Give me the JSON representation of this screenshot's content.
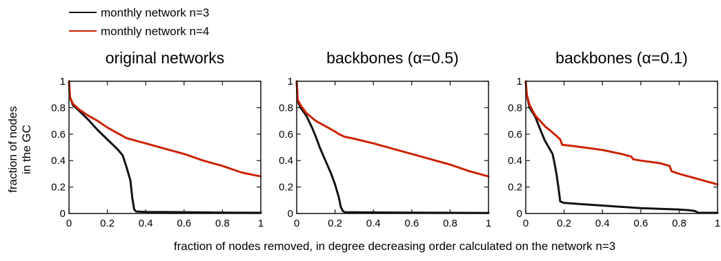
{
  "legend": [
    {
      "label": "monthly network n=3",
      "color": "#111111"
    },
    {
      "label": "monthly network n=4",
      "color": "#cc2200"
    }
  ],
  "xlabel": "fraction of nodes removed, in degree decreasing order calculated on the network n=3",
  "ylabel_lines": [
    "fraction of nodes",
    "in the GC"
  ],
  "x_ticks": [
    "0",
    "0.2",
    "0.4",
    "0.6",
    "0.8",
    "1"
  ],
  "y_ticks": [
    "0",
    "0.2",
    "0.4",
    "0.6",
    "0.8",
    "1"
  ],
  "chart_data": [
    {
      "type": "line",
      "title": "original networks",
      "xlim": [
        0,
        1
      ],
      "ylim": [
        0,
        1
      ],
      "series": [
        {
          "name": "monthly network n=3",
          "color": "#111111",
          "x": [
            0,
            0.005,
            0.02,
            0.05,
            0.1,
            0.15,
            0.2,
            0.25,
            0.28,
            0.3,
            0.31,
            0.32,
            0.33,
            0.34,
            0.35,
            0.4,
            0.6,
            0.8,
            1.0
          ],
          "y": [
            1,
            0.88,
            0.82,
            0.78,
            0.71,
            0.63,
            0.56,
            0.49,
            0.44,
            0.35,
            0.3,
            0.25,
            0.12,
            0.03,
            0.015,
            0.012,
            0.01,
            0.007,
            0.005
          ]
        },
        {
          "name": "monthly network n=4",
          "color": "#cc2200",
          "x": [
            0,
            0.005,
            0.02,
            0.05,
            0.1,
            0.15,
            0.2,
            0.25,
            0.3,
            0.35,
            0.4,
            0.5,
            0.6,
            0.7,
            0.8,
            0.9,
            1.0
          ],
          "y": [
            1,
            0.88,
            0.83,
            0.79,
            0.74,
            0.7,
            0.65,
            0.61,
            0.57,
            0.55,
            0.53,
            0.49,
            0.45,
            0.4,
            0.36,
            0.31,
            0.28
          ]
        }
      ]
    },
    {
      "type": "line",
      "title": "backbones (α=0.5)",
      "xlim": [
        0,
        1
      ],
      "ylim": [
        0,
        1
      ],
      "series": [
        {
          "name": "monthly network n=3",
          "color": "#111111",
          "x": [
            0,
            0.005,
            0.02,
            0.05,
            0.08,
            0.1,
            0.12,
            0.15,
            0.18,
            0.2,
            0.21,
            0.22,
            0.23,
            0.24,
            0.25,
            0.4,
            0.6,
            0.8,
            1.0
          ],
          "y": [
            1,
            0.85,
            0.8,
            0.74,
            0.65,
            0.58,
            0.5,
            0.4,
            0.3,
            0.22,
            0.17,
            0.12,
            0.05,
            0.02,
            0.01,
            0.008,
            0.006,
            0.005,
            0.004
          ]
        },
        {
          "name": "monthly network n=4",
          "color": "#cc2200",
          "x": [
            0,
            0.005,
            0.02,
            0.05,
            0.1,
            0.15,
            0.2,
            0.22,
            0.25,
            0.3,
            0.4,
            0.5,
            0.6,
            0.7,
            0.8,
            0.9,
            1.0
          ],
          "y": [
            1,
            0.86,
            0.82,
            0.76,
            0.7,
            0.66,
            0.62,
            0.6,
            0.58,
            0.565,
            0.53,
            0.49,
            0.45,
            0.41,
            0.37,
            0.32,
            0.28
          ]
        }
      ]
    },
    {
      "type": "line",
      "title": "backbones (α=0.1)",
      "xlim": [
        0,
        1
      ],
      "ylim": [
        0,
        1
      ],
      "series": [
        {
          "name": "monthly network n=3",
          "color": "#111111",
          "x": [
            0,
            0.005,
            0.02,
            0.05,
            0.08,
            0.1,
            0.12,
            0.14,
            0.15,
            0.16,
            0.17,
            0.18,
            0.2,
            0.3,
            0.4,
            0.5,
            0.6,
            0.7,
            0.8,
            0.85,
            0.88,
            0.9,
            1.0
          ],
          "y": [
            1,
            0.9,
            0.8,
            0.73,
            0.62,
            0.55,
            0.5,
            0.45,
            0.38,
            0.3,
            0.2,
            0.09,
            0.08,
            0.07,
            0.06,
            0.05,
            0.04,
            0.035,
            0.03,
            0.025,
            0.02,
            0.005,
            0.005
          ]
        },
        {
          "name": "monthly network n=4",
          "color": "#cc2200",
          "x": [
            0,
            0.005,
            0.02,
            0.05,
            0.1,
            0.15,
            0.18,
            0.19,
            0.25,
            0.3,
            0.4,
            0.5,
            0.55,
            0.56,
            0.6,
            0.7,
            0.75,
            0.76,
            0.8,
            0.9,
            0.95,
            1.0
          ],
          "y": [
            1,
            0.9,
            0.82,
            0.74,
            0.66,
            0.6,
            0.56,
            0.52,
            0.51,
            0.5,
            0.48,
            0.45,
            0.43,
            0.41,
            0.4,
            0.38,
            0.36,
            0.32,
            0.3,
            0.26,
            0.24,
            0.22
          ]
        }
      ]
    }
  ]
}
